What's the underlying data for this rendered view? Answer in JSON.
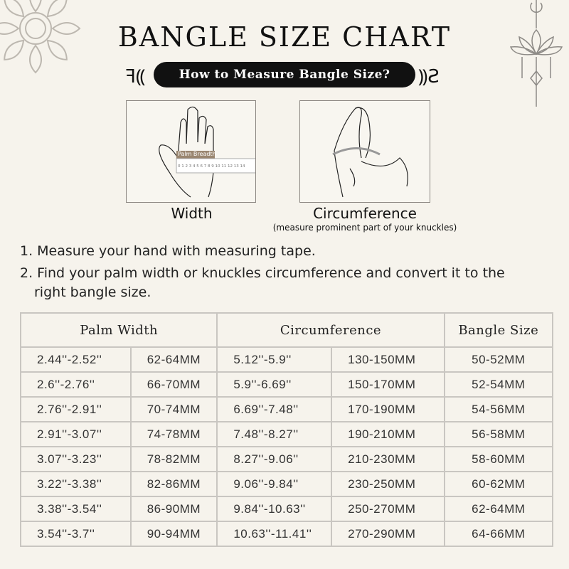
{
  "title": "BANGLE SIZE CHART",
  "subtitle": "How to Measure Bangle Size?",
  "illustrations": {
    "width": {
      "label": "Width",
      "ruler_label": "Palm Breadth",
      "ruler_ticks": "0 1 2 3 4 5 6 7 8 9 10 11 12 13 14"
    },
    "circumference": {
      "label": "Circumference",
      "note": "(measure prominent part of your knuckles)"
    }
  },
  "steps": [
    "1. Measure your hand with measuring tape.",
    "2. Find your palm width or knuckles circumference and convert it to the",
    "right bangle size."
  ],
  "table": {
    "headers": [
      "Palm Width",
      "Circumference",
      "Bangle Size"
    ],
    "rows": [
      [
        "2.44''-2.52''",
        "62-64MM",
        "5.12''-5.9''",
        "130-150MM",
        "50-52MM"
      ],
      [
        "2.6''-2.76''",
        "66-70MM",
        "5.9''-6.69''",
        "150-170MM",
        "52-54MM"
      ],
      [
        "2.76''-2.91''",
        "70-74MM",
        "6.69''-7.48''",
        "170-190MM",
        "54-56MM"
      ],
      [
        "2.91''-3.07''",
        "74-78MM",
        "7.48''-8.27''",
        "190-210MM",
        "56-58MM"
      ],
      [
        "3.07''-3.23''",
        "78-82MM",
        "8.27''-9.06''",
        "210-230MM",
        "58-60MM"
      ],
      [
        "3.22''-3.38''",
        "82-86MM",
        "9.06''-9.84''",
        "230-250MM",
        "60-62MM"
      ],
      [
        "3.38''-3.54''",
        "86-90MM",
        "9.84''-10.63''",
        "250-270MM",
        "62-64MM"
      ],
      [
        "3.54''-3.7''",
        "90-94MM",
        "10.63''-11.41''",
        "270-290MM",
        "64-66MM"
      ]
    ]
  },
  "colors": {
    "background": "#f6f3ec",
    "pill": "#111111",
    "ruler_label": "#9a8670",
    "border": "#c9c6c1"
  }
}
